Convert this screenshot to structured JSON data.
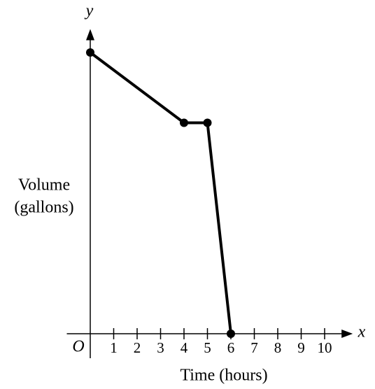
{
  "chart_data": {
    "type": "line",
    "x": [
      0,
      4,
      5,
      6
    ],
    "values": [
      12,
      9,
      9,
      0
    ],
    "color": "#000000",
    "xlim": [
      -1,
      11.2
    ],
    "ylim": [
      0,
      13
    ],
    "xticks": [
      1,
      2,
      3,
      4,
      5,
      6,
      7,
      8,
      9,
      10
    ],
    "xlabel": "Time (hours)",
    "ylabel": [
      "Volume",
      "(gallons)"
    ],
    "x_axis_letter": "x",
    "y_axis_letter": "y",
    "origin_label": "O"
  }
}
